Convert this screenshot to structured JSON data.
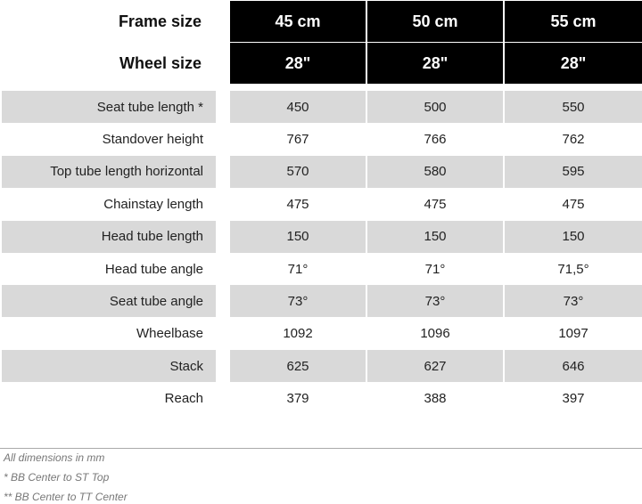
{
  "header": {
    "frame_size_label": "Frame size",
    "wheel_size_label": "Wheel size",
    "sizes": [
      {
        "frame": "45 cm",
        "wheel": "28\""
      },
      {
        "frame": "50 cm",
        "wheel": "28\""
      },
      {
        "frame": "55 cm",
        "wheel": "28\""
      }
    ]
  },
  "rows": [
    {
      "label": "Seat tube length *",
      "values": [
        "450",
        "500",
        "550"
      ]
    },
    {
      "label": "Standover height",
      "values": [
        "767",
        "766",
        "762"
      ]
    },
    {
      "label": "Top tube length horizontal",
      "values": [
        "570",
        "580",
        "595"
      ]
    },
    {
      "label": "Chainstay length",
      "values": [
        "475",
        "475",
        "475"
      ]
    },
    {
      "label": "Head tube length",
      "values": [
        "150",
        "150",
        "150"
      ]
    },
    {
      "label": "Head tube angle",
      "values": [
        "71°",
        "71°",
        "71,5°"
      ]
    },
    {
      "label": "Seat tube angle",
      "values": [
        "73°",
        "73°",
        "73°"
      ]
    },
    {
      "label": "Wheelbase",
      "values": [
        "1092",
        "1096",
        "1097"
      ]
    },
    {
      "label": "Stack",
      "values": [
        "625",
        "627",
        "646"
      ]
    },
    {
      "label": "Reach",
      "values": [
        "379",
        "388",
        "397"
      ]
    }
  ],
  "footnotes": [
    "All dimensions in mm",
    "* BB Center to ST Top",
    "**  BB Center to TT Center"
  ]
}
